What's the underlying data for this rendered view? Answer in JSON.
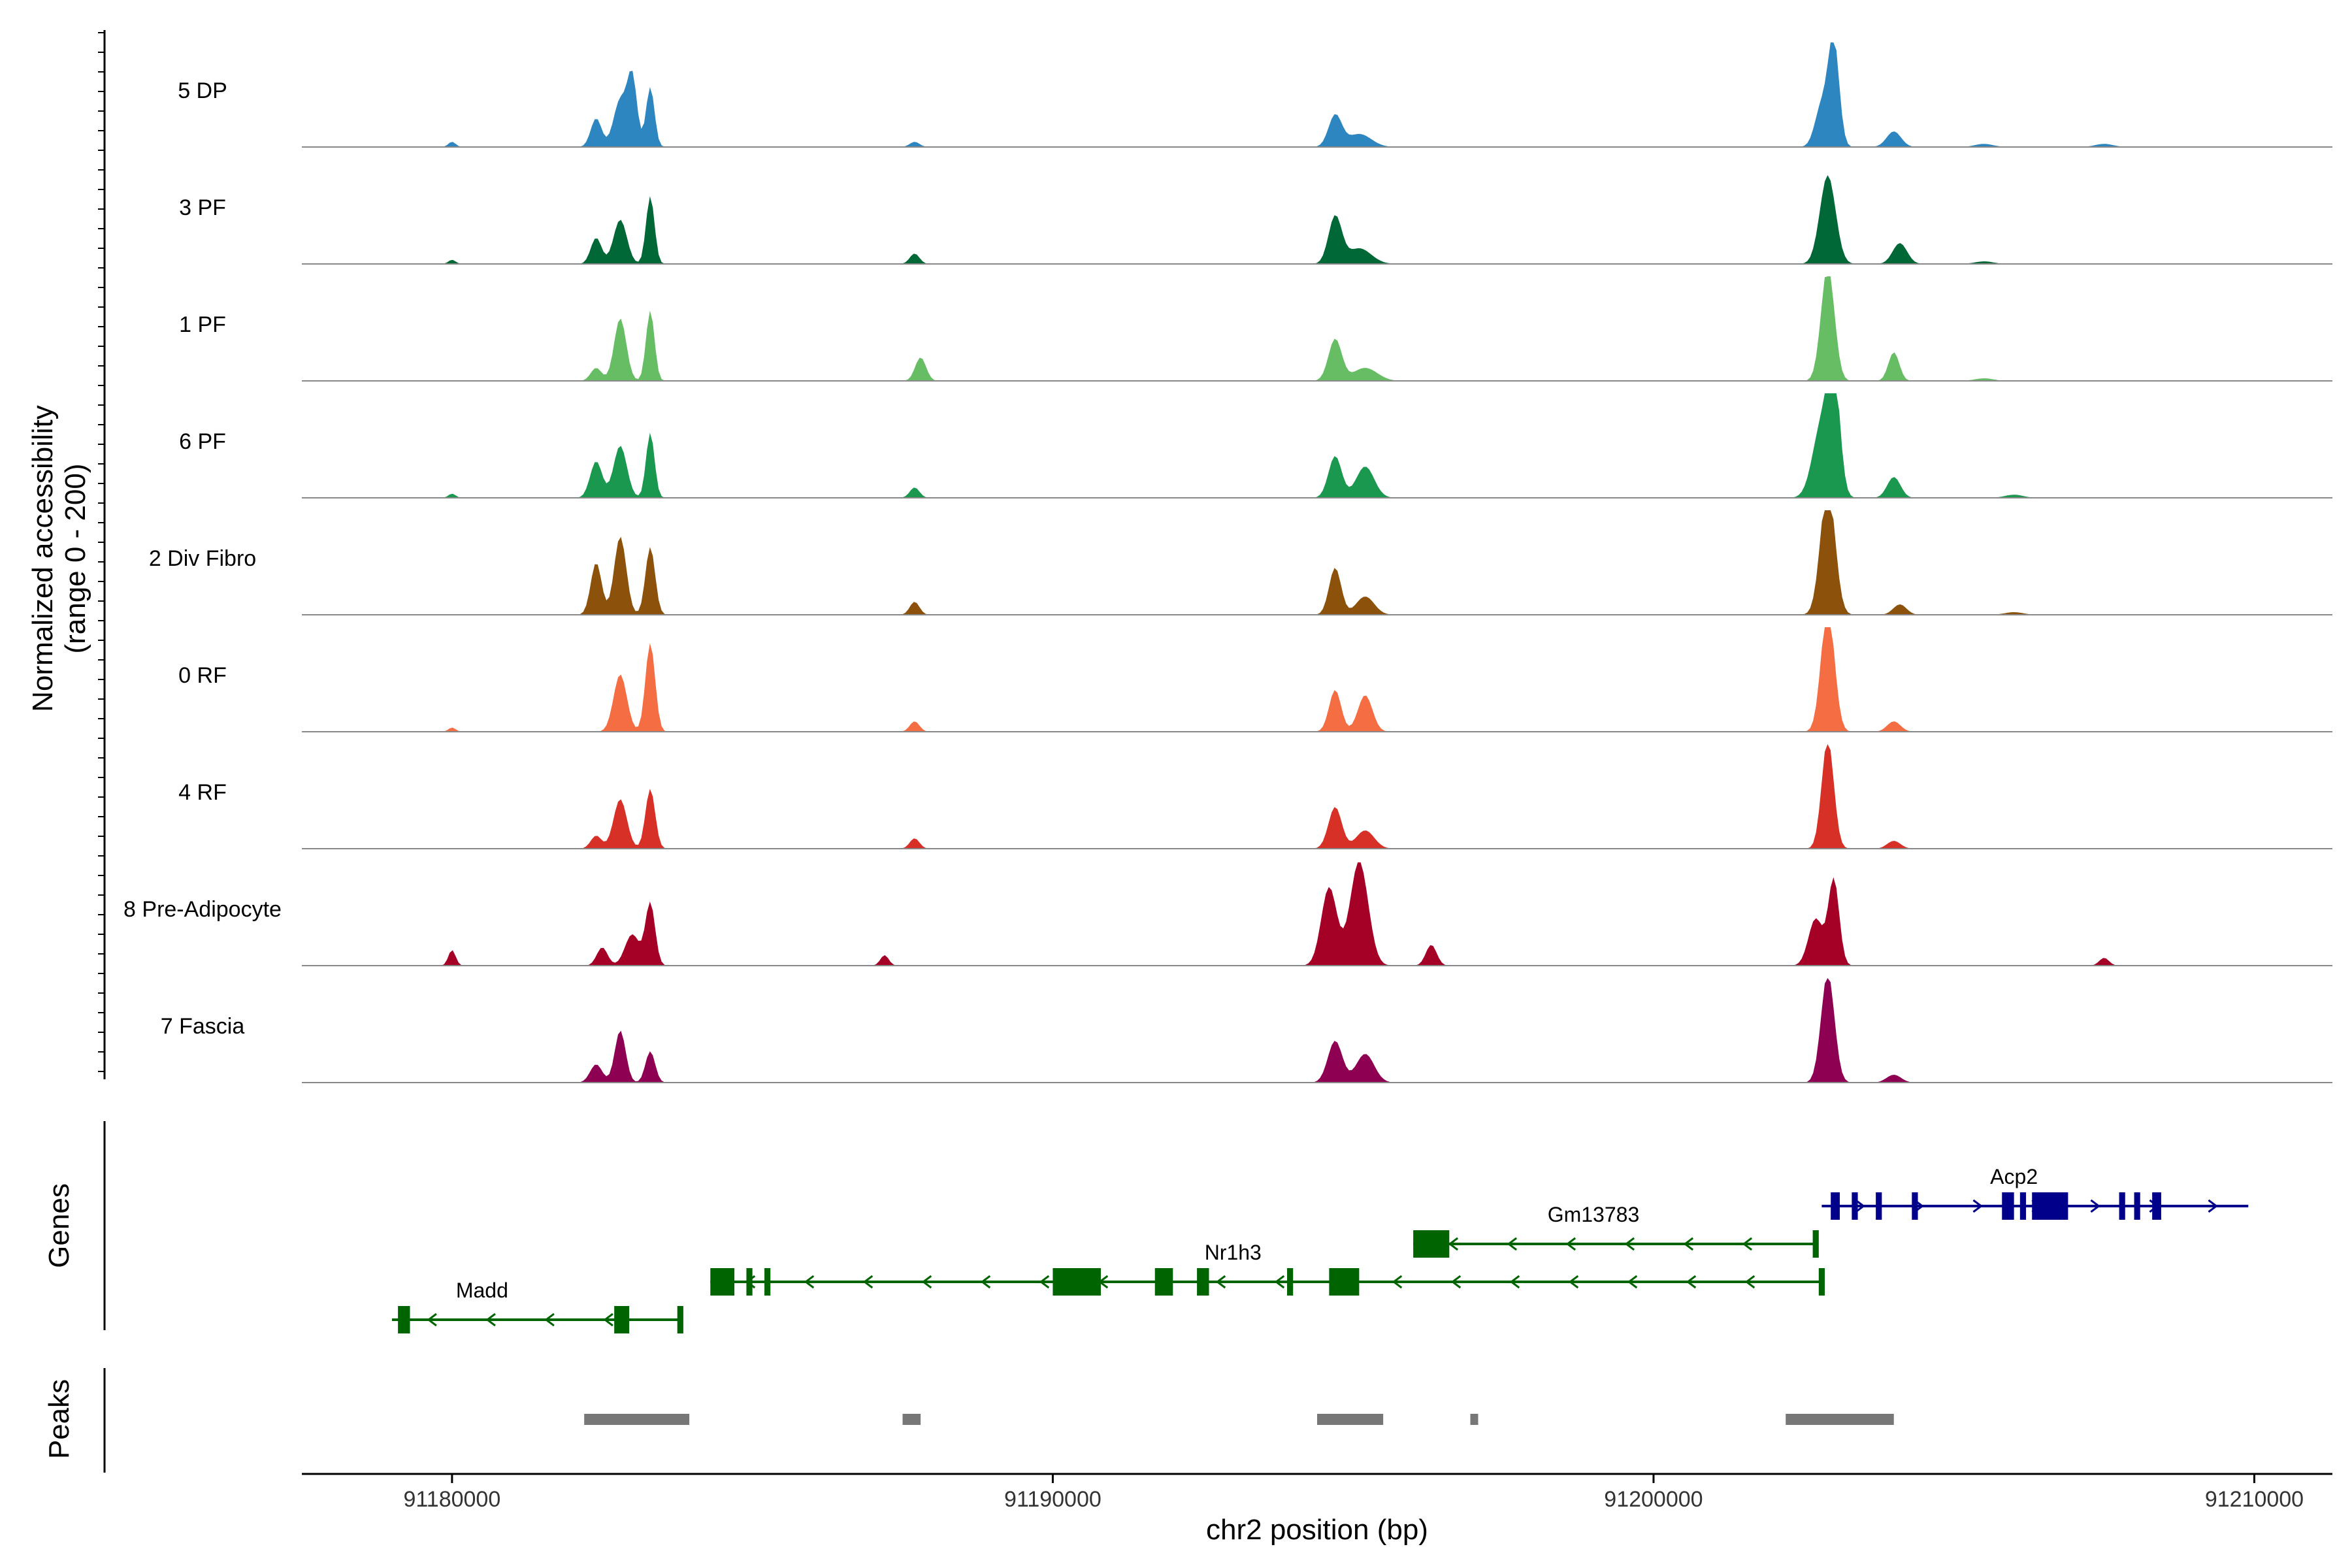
{
  "chart_data": {
    "type": "area",
    "title": "",
    "chromosome": "chr2",
    "xlabel": "chr2 position (bp)",
    "ylabel_line1": "Normalized accessibility",
    "ylabel_line2": "(range 0 - 200)",
    "yrange": [
      0,
      200
    ],
    "xlim": [
      91177500,
      91211300
    ],
    "x_ticks": [
      91180000,
      91190000,
      91200000,
      91210000
    ],
    "x_tick_labels": [
      "91180000",
      "91190000",
      "91200000",
      "91210000"
    ],
    "genes_title": "Genes",
    "peaks_title": "Peaks",
    "tracks": [
      {
        "name": "5 DP",
        "color": "#2E86C1",
        "peaks": [
          [
            91180000,
            10,
            60
          ],
          [
            91182400,
            55,
            90
          ],
          [
            91182800,
            90,
            110
          ],
          [
            91183000,
            130,
            80
          ],
          [
            91183300,
            115,
            70
          ],
          [
            91187700,
            10,
            80
          ],
          [
            91194700,
            60,
            110
          ],
          [
            91195100,
            25,
            200
          ],
          [
            91202800,
            80,
            110
          ],
          [
            91203000,
            200,
            90
          ],
          [
            91204000,
            30,
            120
          ],
          [
            91205500,
            6,
            150
          ],
          [
            91207500,
            6,
            150
          ]
        ]
      },
      {
        "name": "3 PF",
        "color": "#006837",
        "peaks": [
          [
            91180000,
            8,
            60
          ],
          [
            91182400,
            50,
            90
          ],
          [
            91182800,
            85,
            110
          ],
          [
            91183300,
            130,
            70
          ],
          [
            91187700,
            20,
            80
          ],
          [
            91194700,
            90,
            110
          ],
          [
            91195100,
            30,
            200
          ],
          [
            91202900,
            170,
            130
          ],
          [
            91204100,
            40,
            120
          ],
          [
            91205500,
            5,
            150
          ]
        ]
      },
      {
        "name": "1 PF",
        "color": "#66BD63",
        "peaks": [
          [
            91182400,
            25,
            90
          ],
          [
            91182800,
            120,
            100
          ],
          [
            91183300,
            135,
            70
          ],
          [
            91187800,
            45,
            90
          ],
          [
            91194700,
            80,
            110
          ],
          [
            91195200,
            25,
            200
          ],
          [
            91202900,
            220,
            110
          ],
          [
            91204000,
            55,
            90
          ],
          [
            91205500,
            5,
            150
          ]
        ]
      },
      {
        "name": "6 PF",
        "color": "#1A9850",
        "peaks": [
          [
            91180000,
            8,
            60
          ],
          [
            91182400,
            70,
            100
          ],
          [
            91182800,
            100,
            110
          ],
          [
            91183300,
            125,
            70
          ],
          [
            91187700,
            20,
            80
          ],
          [
            91194700,
            80,
            110
          ],
          [
            91195200,
            60,
            150
          ],
          [
            91202800,
            140,
            150
          ],
          [
            91203000,
            220,
            100
          ],
          [
            91204000,
            40,
            110
          ],
          [
            91206000,
            6,
            150
          ]
        ]
      },
      {
        "name": "2 Div Fibro",
        "color": "#8C510A",
        "peaks": [
          [
            91182400,
            100,
            90
          ],
          [
            91182800,
            150,
            100
          ],
          [
            91183300,
            130,
            80
          ],
          [
            91187700,
            25,
            80
          ],
          [
            91194700,
            90,
            100
          ],
          [
            91195200,
            35,
            150
          ],
          [
            91202900,
            250,
            120
          ],
          [
            91204100,
            20,
            110
          ],
          [
            91206000,
            5,
            150
          ]
        ]
      },
      {
        "name": "0 RF",
        "color": "#F46D43",
        "peaks": [
          [
            91180000,
            8,
            60
          ],
          [
            91182800,
            110,
            110
          ],
          [
            91183300,
            170,
            80
          ],
          [
            91187700,
            20,
            80
          ],
          [
            91194700,
            80,
            100
          ],
          [
            91195200,
            70,
            120
          ],
          [
            91202900,
            240,
            110
          ],
          [
            91204000,
            20,
            110
          ]
        ]
      },
      {
        "name": "4 RF",
        "color": "#D73027",
        "peaks": [
          [
            91182400,
            25,
            90
          ],
          [
            91182800,
            95,
            110
          ],
          [
            91183300,
            115,
            80
          ],
          [
            91187700,
            20,
            80
          ],
          [
            91194700,
            80,
            110
          ],
          [
            91195200,
            35,
            150
          ],
          [
            91202900,
            210,
            100
          ],
          [
            91204000,
            15,
            110
          ]
        ]
      },
      {
        "name": "8 Pre-Adipocyte",
        "color": "#A50026",
        "peaks": [
          [
            91180000,
            30,
            60
          ],
          [
            91182500,
            35,
            90
          ],
          [
            91183000,
            60,
            120
          ],
          [
            91183300,
            120,
            80
          ],
          [
            91187200,
            20,
            70
          ],
          [
            91194600,
            150,
            130
          ],
          [
            91195100,
            200,
            150
          ],
          [
            91196300,
            40,
            90
          ],
          [
            91202700,
            90,
            120
          ],
          [
            91203000,
            165,
            90
          ],
          [
            91207500,
            15,
            80
          ]
        ]
      },
      {
        "name": "7 Fascia",
        "color": "#8E0152",
        "peaks": [
          [
            91182400,
            35,
            100
          ],
          [
            91182800,
            100,
            90
          ],
          [
            91183300,
            60,
            80
          ],
          [
            91194700,
            80,
            120
          ],
          [
            91195200,
            55,
            150
          ],
          [
            91202900,
            210,
            110
          ],
          [
            91204000,
            15,
            120
          ]
        ]
      }
    ],
    "genes": [
      {
        "name": "Acp2",
        "strand": "+",
        "start": 91202800,
        "end": 91209900,
        "row": 0,
        "color": "#00008B",
        "exons": [
          [
            91202950,
            91203100
          ],
          [
            91203300,
            91203400
          ],
          [
            91203700,
            91203800
          ],
          [
            91204300,
            91204400
          ],
          [
            91205800,
            91206000
          ],
          [
            91206100,
            91206200
          ],
          [
            91206300,
            91206900
          ],
          [
            91207750,
            91207850
          ],
          [
            91208000,
            91208100
          ],
          [
            91208300,
            91208450
          ]
        ]
      },
      {
        "name": "Gm13783",
        "strand": "-",
        "start": 91196000,
        "end": 91202700,
        "row": 1,
        "color": "#006400",
        "exons": [
          [
            91196000,
            91196600
          ],
          [
            91202650,
            91202750
          ]
        ]
      },
      {
        "name": "Nr1h3",
        "strand": "-",
        "start": 91184300,
        "end": 91202800,
        "row": 2,
        "color": "#006400",
        "exons": [
          [
            91184300,
            91184700
          ],
          [
            91184900,
            91185000
          ],
          [
            91185200,
            91185300
          ],
          [
            91190000,
            91190800
          ],
          [
            91191700,
            91192000
          ],
          [
            91192400,
            91192600
          ],
          [
            91193900,
            91194000
          ],
          [
            91194600,
            91195100
          ],
          [
            91202750,
            91202850
          ]
        ]
      },
      {
        "name": "Madd",
        "strand": "-",
        "start": 91179000,
        "end": 91183800,
        "row": 3,
        "color": "#006400",
        "exons": [
          [
            91179100,
            91179300
          ],
          [
            91182700,
            91182950
          ],
          [
            91183750,
            91183850
          ]
        ]
      }
    ],
    "peak_regions": [
      [
        91182200,
        91183950
      ],
      [
        91187500,
        91187800
      ],
      [
        91194400,
        91195500
      ],
      [
        91196950,
        91197050
      ],
      [
        91202200,
        91204000
      ]
    ]
  }
}
